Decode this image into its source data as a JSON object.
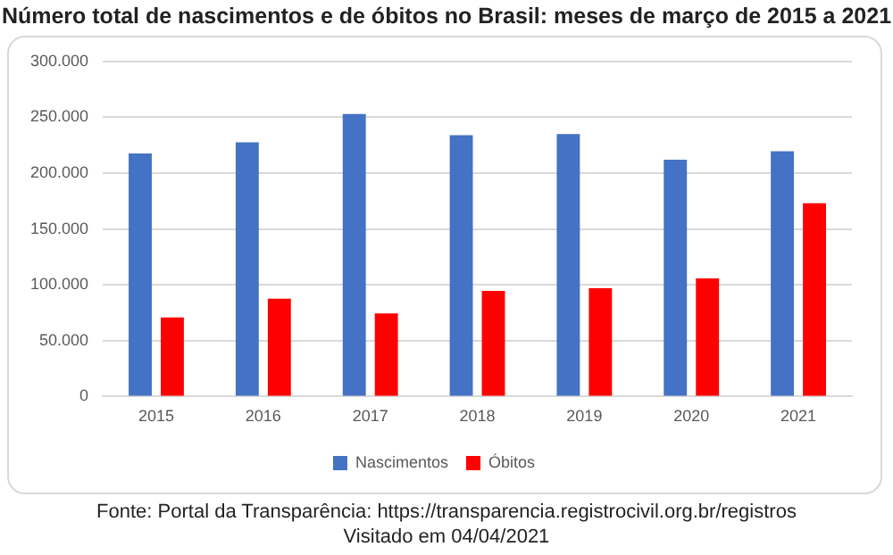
{
  "chart_data": {
    "type": "bar",
    "title": "Número total de nascimentos e de óbitos no Brasil: meses de março de 2015 a 2021",
    "categories": [
      "2015",
      "2016",
      "2017",
      "2018",
      "2019",
      "2020",
      "2021"
    ],
    "series": [
      {
        "name": "Nascimentos",
        "color": "#4472c4",
        "values": [
          217500,
          227600,
          252900,
          234000,
          235000,
          212000,
          219500
        ]
      },
      {
        "name": "Óbitos",
        "color": "#ff0000",
        "values": [
          70800,
          87500,
          74400,
          94600,
          97000,
          105700,
          173000
        ]
      }
    ],
    "ylim": [
      0,
      300000
    ],
    "yticks": [
      {
        "value": 0,
        "label": "0"
      },
      {
        "value": 50000,
        "label": "50.000"
      },
      {
        "value": 100000,
        "label": "100.000"
      },
      {
        "value": 150000,
        "label": "150.000"
      },
      {
        "value": 200000,
        "label": "200.000"
      },
      {
        "value": 250000,
        "label": "250.000"
      },
      {
        "value": 300000,
        "label": "300.000"
      }
    ],
    "grid": "y",
    "legend": "bottom",
    "annotations": [
      "Fonte: Portal da Transparência: https://transparencia.registrocivil.org.br/registros",
      "Visitado em 04/04/2021"
    ]
  }
}
